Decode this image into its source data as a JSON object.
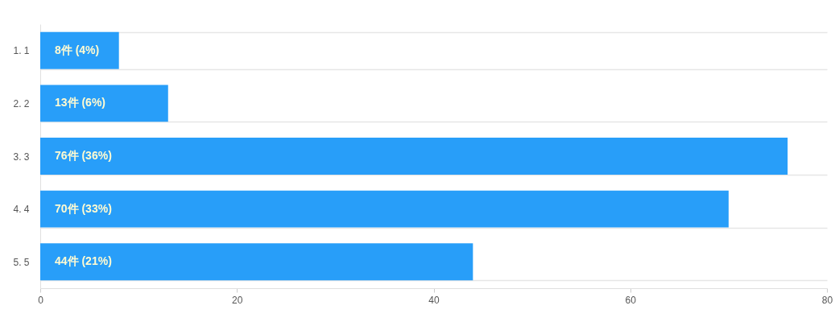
{
  "chart_data": {
    "type": "bar",
    "orientation": "horizontal",
    "categories": [
      "1. 1",
      "2. 2",
      "3. 3",
      "4. 4",
      "5. 5"
    ],
    "values": [
      8,
      13,
      76,
      70,
      44
    ],
    "value_labels": [
      "8件 (4%)",
      "13件 (6%)",
      "76件 (36%)",
      "70件 (33%)",
      "44件 (21%)"
    ],
    "color": "#289ef9",
    "xlim": [
      0,
      80
    ],
    "xticks": [
      0,
      20,
      40,
      60,
      80
    ],
    "grid": "y"
  }
}
